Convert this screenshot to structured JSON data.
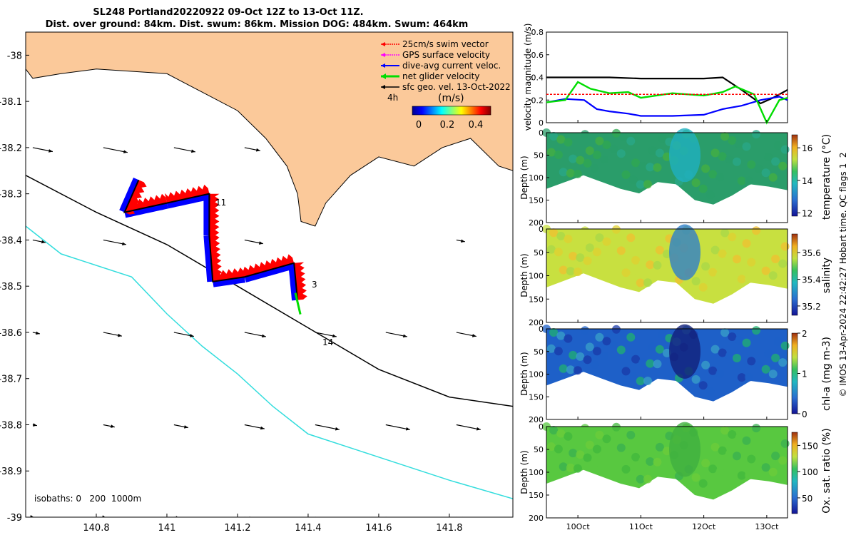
{
  "title": {
    "line1": "SL248 Portland20220922 09-Oct 12Z to 13-Oct 11Z.",
    "line2": "Dist. over ground: 84km. Dist. swum: 86km. Mission DOG: 484km. Swum: 464km"
  },
  "colors": {
    "land": "#fbc99a",
    "swim_vector": "#ff0000",
    "gps_velocity": "#ff00ff",
    "current": "#0000ff",
    "net_velocity": "#00dd00",
    "geo_velocity": "#000000",
    "isobath_200": "#000000",
    "isobath_1000": "#33dddd"
  },
  "map": {
    "legend": [
      {
        "label": "25cm/s swim vector",
        "color": "#ff0000"
      },
      {
        "label": "GPS surface velocity",
        "color": "#ff00ff"
      },
      {
        "label": "dive-avg current veloc.",
        "color": "#0000ff"
      },
      {
        "label": "net glider velocity",
        "color": "#00dd00"
      },
      {
        "label": "sfc geo. vel. 13-Oct-2022",
        "color": "#000000"
      }
    ],
    "interval_label": "4h",
    "colorbar_title": "(m/s)",
    "colorbar_ticks": [
      "0",
      "0.2",
      "0.4"
    ],
    "isobaths_label": "isobaths: 0   200  1000m",
    "day_labels": [
      "11",
      "3",
      "14"
    ]
  },
  "chart_data": [
    {
      "type": "scatter",
      "name": "track map",
      "xlim": [
        140.6,
        141.98
      ],
      "ylim": [
        -39.0,
        -37.95
      ],
      "xticks": [
        140.8,
        141.0,
        141.2,
        141.4,
        141.6,
        141.8
      ],
      "xtick_labels": [
        "140.8",
        "141",
        "141.2",
        "141.4",
        "141.6",
        "141.8"
      ],
      "yticks": [
        -38.0,
        -38.1,
        -38.2,
        -38.3,
        -38.4,
        -38.5,
        -38.6,
        -38.7,
        -38.8,
        -38.9,
        -39.0
      ],
      "ytick_labels": [
        "-38",
        "-38.1",
        "-38.2",
        "-38.3",
        "-38.4",
        "-38.5",
        "-38.6",
        "-38.7",
        "-38.8",
        "-38.9",
        "-39"
      ],
      "glider_track": [
        {
          "lon": 141.37,
          "lat": -38.53
        },
        {
          "lon": 141.36,
          "lat": -38.45
        },
        {
          "lon": 141.22,
          "lat": -38.48
        },
        {
          "lon": 141.13,
          "lat": -38.49
        },
        {
          "lon": 141.12,
          "lat": -38.39
        },
        {
          "lon": 141.12,
          "lat": -38.3
        },
        {
          "lon": 141.0,
          "lat": -38.32
        },
        {
          "lon": 140.88,
          "lat": -38.34
        },
        {
          "lon": 140.92,
          "lat": -38.27
        }
      ],
      "coastline": [
        {
          "lon": 140.6,
          "lat": -38.03
        },
        {
          "lon": 140.62,
          "lat": -38.05
        },
        {
          "lon": 140.7,
          "lat": -38.04
        },
        {
          "lon": 140.8,
          "lat": -38.03
        },
        {
          "lon": 141.0,
          "lat": -38.04
        },
        {
          "lon": 141.1,
          "lat": -38.08
        },
        {
          "lon": 141.2,
          "lat": -38.12
        },
        {
          "lon": 141.28,
          "lat": -38.18
        },
        {
          "lon": 141.34,
          "lat": -38.24
        },
        {
          "lon": 141.37,
          "lat": -38.3
        },
        {
          "lon": 141.38,
          "lat": -38.36
        },
        {
          "lon": 141.42,
          "lat": -38.37
        },
        {
          "lon": 141.45,
          "lat": -38.32
        },
        {
          "lon": 141.52,
          "lat": -38.26
        },
        {
          "lon": 141.6,
          "lat": -38.22
        },
        {
          "lon": 141.7,
          "lat": -38.24
        },
        {
          "lon": 141.78,
          "lat": -38.2
        },
        {
          "lon": 141.86,
          "lat": -38.18
        },
        {
          "lon": 141.94,
          "lat": -38.24
        },
        {
          "lon": 141.98,
          "lat": -38.25
        }
      ],
      "isobath_200m": [
        {
          "lon": 140.6,
          "lat": -38.26
        },
        {
          "lon": 140.8,
          "lat": -38.34
        },
        {
          "lon": 141.0,
          "lat": -38.41
        },
        {
          "lon": 141.2,
          "lat": -38.5
        },
        {
          "lon": 141.4,
          "lat": -38.59
        },
        {
          "lon": 141.6,
          "lat": -38.68
        },
        {
          "lon": 141.8,
          "lat": -38.74
        },
        {
          "lon": 141.98,
          "lat": -38.76
        }
      ],
      "isobath_1000m": [
        {
          "lon": 140.6,
          "lat": -38.37
        },
        {
          "lon": 140.7,
          "lat": -38.43
        },
        {
          "lon": 140.9,
          "lat": -38.48
        },
        {
          "lon": 141.0,
          "lat": -38.56
        },
        {
          "lon": 141.1,
          "lat": -38.63
        },
        {
          "lon": 141.2,
          "lat": -38.69
        },
        {
          "lon": 141.3,
          "lat": -38.76
        },
        {
          "lon": 141.4,
          "lat": -38.82
        },
        {
          "lon": 141.6,
          "lat": -38.87
        },
        {
          "lon": 141.8,
          "lat": -38.92
        },
        {
          "lon": 141.98,
          "lat": -38.96
        }
      ]
    },
    {
      "type": "line",
      "name": "velocity",
      "ylabel": "velocity magnitude (m/s)",
      "xlim": [
        9.5,
        13.33
      ],
      "ylim": [
        0,
        0.8
      ],
      "yticks": [
        "0",
        "0.2",
        "0.4",
        "0.6",
        "0.8"
      ],
      "series": [
        {
          "color": "#000000",
          "x": [
            9.5,
            10.0,
            10.5,
            11.0,
            11.5,
            12.0,
            12.3,
            12.6,
            12.9,
            13.1,
            13.33
          ],
          "y": [
            0.4,
            0.4,
            0.4,
            0.39,
            0.39,
            0.39,
            0.4,
            0.29,
            0.17,
            0.22,
            0.29
          ]
        },
        {
          "color": "#0000ff",
          "x": [
            9.5,
            9.8,
            10.1,
            10.3,
            10.5,
            10.8,
            11.0,
            11.5,
            12.0,
            12.3,
            12.6,
            12.9,
            13.2,
            13.33
          ],
          "y": [
            0.18,
            0.21,
            0.2,
            0.12,
            0.1,
            0.08,
            0.06,
            0.06,
            0.07,
            0.12,
            0.15,
            0.2,
            0.23,
            0.2
          ]
        },
        {
          "color": "#00dd00",
          "x": [
            9.5,
            9.8,
            10.0,
            10.2,
            10.5,
            10.8,
            11.0,
            11.5,
            12.0,
            12.3,
            12.5,
            12.8,
            13.0,
            13.2,
            13.33
          ],
          "y": [
            0.18,
            0.2,
            0.36,
            0.3,
            0.26,
            0.27,
            0.22,
            0.26,
            0.24,
            0.27,
            0.32,
            0.25,
            0.0,
            0.2,
            0.22
          ]
        },
        {
          "color": "#ff0000",
          "x": [
            9.5,
            13.33
          ],
          "y": [
            0.25,
            0.25
          ]
        }
      ]
    },
    {
      "type": "heatmap",
      "name": "temperature",
      "ylabel": "Depth (m)",
      "ylim": [
        200,
        0
      ],
      "yticks": [
        "0",
        "50",
        "100",
        "150",
        "200"
      ],
      "colorbar_label": "temperature (°C)",
      "colorbar_ticks": [
        "12",
        "14",
        "16"
      ],
      "crange": [
        11.8,
        16.8
      ]
    },
    {
      "type": "heatmap",
      "name": "salinity",
      "ylabel": "Depth (m)",
      "ylim": [
        200,
        0
      ],
      "yticks": [
        "0",
        "50",
        "100",
        "150",
        "200"
      ],
      "colorbar_label": "salinity",
      "colorbar_ticks": [
        "35.2",
        "35.4",
        "35.6"
      ],
      "crange": [
        35.13,
        35.74
      ]
    },
    {
      "type": "heatmap",
      "name": "chl-a",
      "ylabel": "Depth (m)",
      "ylim": [
        200,
        0
      ],
      "yticks": [
        "0",
        "50",
        "100",
        "150",
        "200"
      ],
      "colorbar_label": "chl-a (mg m-3)",
      "colorbar_ticks": [
        "0",
        "1",
        "2"
      ],
      "crange": [
        0,
        2
      ]
    },
    {
      "type": "heatmap",
      "name": "oxygen",
      "ylabel": "Depth (m)",
      "ylim": [
        200,
        0
      ],
      "yticks": [
        "0",
        "50",
        "100",
        "150",
        "200"
      ],
      "colorbar_label": "Ox. sat. ratio (%)",
      "colorbar_ticks": [
        "50",
        "100",
        "150"
      ],
      "crange": [
        20,
        175
      ],
      "xticks": [
        10,
        11,
        12,
        13
      ],
      "xtick_labels": [
        "10Oct",
        "11Oct",
        "12Oct",
        "13Oct"
      ]
    }
  ],
  "footer": "© IMOS 13-Apr-2024 22:42:27 Hobart time. QC flags 1  2"
}
